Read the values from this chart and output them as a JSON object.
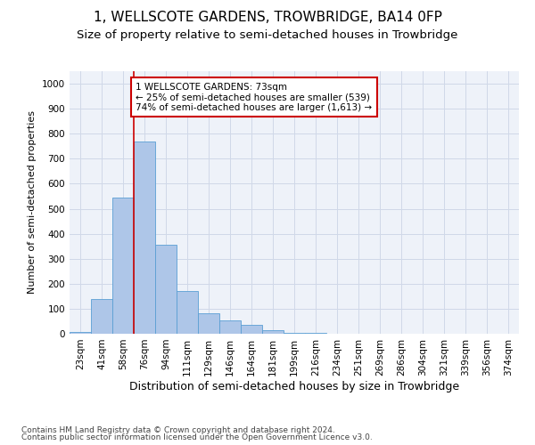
{
  "title1": "1, WELLSCOTE GARDENS, TROWBRIDGE, BA14 0FP",
  "title2": "Size of property relative to semi-detached houses in Trowbridge",
  "xlabel": "Distribution of semi-detached houses by size in Trowbridge",
  "ylabel": "Number of semi-detached properties",
  "categories": [
    "23sqm",
    "41sqm",
    "58sqm",
    "76sqm",
    "94sqm",
    "111sqm",
    "129sqm",
    "146sqm",
    "164sqm",
    "181sqm",
    "199sqm",
    "216sqm",
    "234sqm",
    "251sqm",
    "269sqm",
    "286sqm",
    "304sqm",
    "321sqm",
    "339sqm",
    "356sqm",
    "374sqm"
  ],
  "values": [
    8,
    140,
    545,
    770,
    355,
    170,
    82,
    55,
    35,
    15,
    5,
    5,
    0,
    0,
    0,
    0,
    0,
    0,
    0,
    0,
    0
  ],
  "bar_color": "#aec6e8",
  "bar_edge_color": "#5a9fd4",
  "vline_x": 2.5,
  "vline_color": "#cc0000",
  "annotation_text": "1 WELLSCOTE GARDENS: 73sqm\n← 25% of semi-detached houses are smaller (539)\n74% of semi-detached houses are larger (1,613) →",
  "annotation_box_color": "#ffffff",
  "annotation_border_color": "#cc0000",
  "ylim": [
    0,
    1050
  ],
  "yticks": [
    0,
    100,
    200,
    300,
    400,
    500,
    600,
    700,
    800,
    900,
    1000
  ],
  "grid_color": "#d0d8e8",
  "bg_color": "#eef2f9",
  "footer1": "Contains HM Land Registry data © Crown copyright and database right 2024.",
  "footer2": "Contains public sector information licensed under the Open Government Licence v3.0.",
  "title1_fontsize": 11,
  "title2_fontsize": 9.5,
  "xlabel_fontsize": 9,
  "ylabel_fontsize": 8,
  "tick_fontsize": 7.5,
  "footer_fontsize": 6.5
}
